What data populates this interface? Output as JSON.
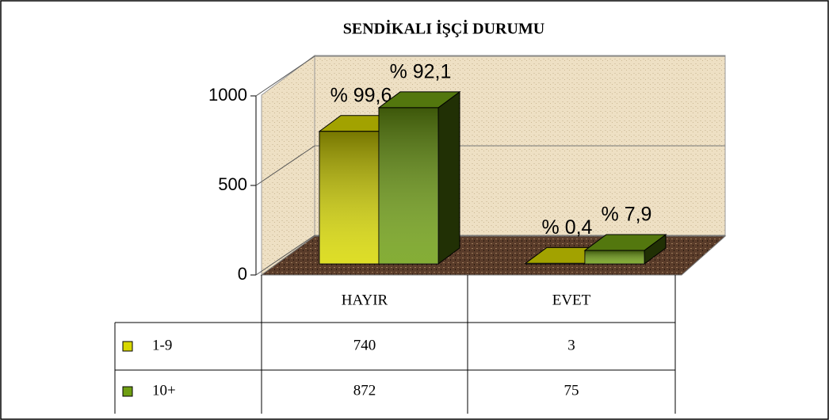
{
  "chart_data": {
    "type": "bar3d",
    "title": "SENDİKALI İŞÇİ DURUMU",
    "categories": [
      "HAYIR",
      "EVET"
    ],
    "series": [
      {
        "name": "1-9",
        "color": "#d8d800",
        "values": [
          740,
          3
        ],
        "percent_labels": [
          "% 99,6",
          "% 0,4"
        ]
      },
      {
        "name": "10+",
        "color": "#6f9f12",
        "values": [
          872,
          75
        ],
        "percent_labels": [
          "% 92,1",
          "% 7,9"
        ]
      }
    ],
    "ylim": [
      0,
      1200
    ],
    "yticks": [
      0,
      500,
      1000
    ],
    "grid": true
  }
}
